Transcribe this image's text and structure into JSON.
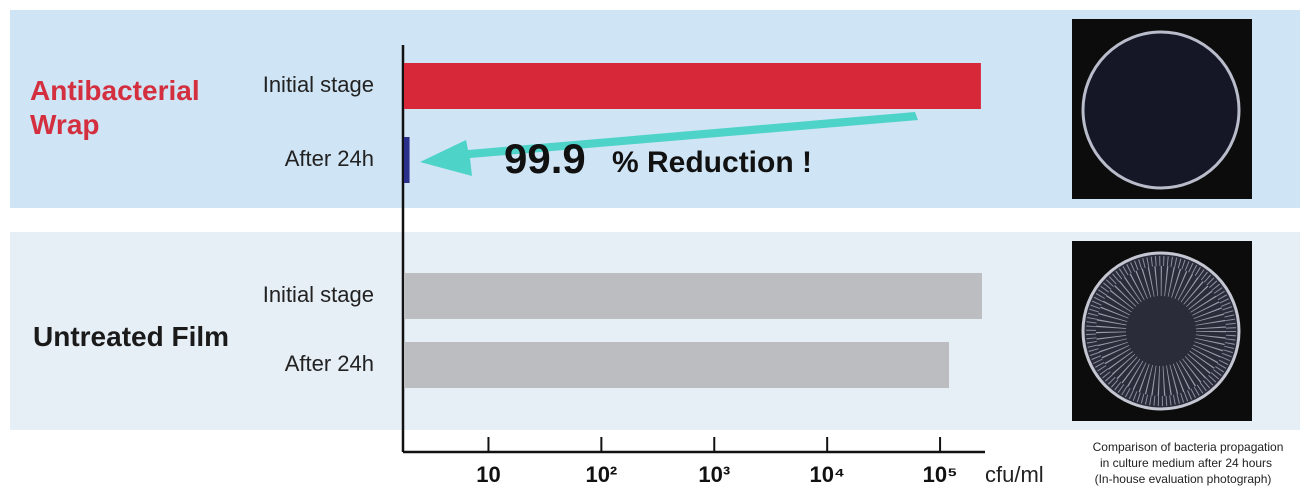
{
  "chart_data": {
    "type": "bar",
    "orientation": "horizontal",
    "log_scale": true,
    "xlim": [
      1.75,
      250000
    ],
    "xticks": [
      10,
      {
        "value": 100,
        "label": "10²"
      },
      {
        "value": 1000,
        "label": "10³"
      },
      {
        "value": 10000,
        "label": "10⁴"
      },
      {
        "value": 100000,
        "label": "10⁵"
      }
    ],
    "x_unit": "cfu/ml",
    "groups": [
      {
        "name": "Antibacterial Wrap",
        "color": "#d32f3f",
        "background": "#cfe4f4",
        "categories": [
          "Initial stage",
          "After 24h"
        ],
        "values": [
          230000,
          2
        ],
        "bar_colors": [
          "#d7283a",
          "#2b2f8c"
        ]
      },
      {
        "name": "Untreated Film",
        "color": "#1a1a1a",
        "background": "#e6eef6",
        "categories": [
          "Initial stage",
          "After 24h"
        ],
        "values": [
          235000,
          120000
        ],
        "bar_colors": [
          "#bcbdc1",
          "#bcbdc1"
        ]
      }
    ],
    "reduction_percent": 99.9,
    "reduction_label": "% Reduction !",
    "caption_lines": [
      "Comparison of bacteria propagation",
      "in culture medium  after 24 hours",
      "(In-house evaluation photograph)"
    ]
  }
}
